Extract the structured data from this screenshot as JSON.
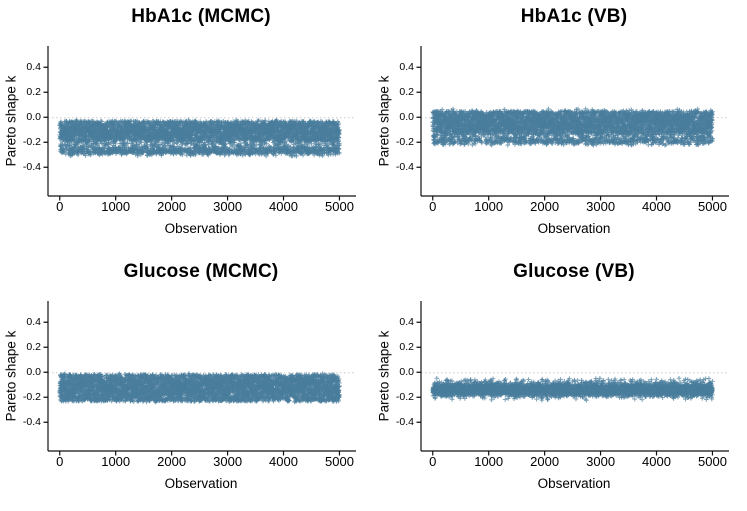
{
  "figure": {
    "background": "#ffffff",
    "point_color": "#4a7d9d",
    "point_alpha": 0.7,
    "axis_color": "#111111",
    "ref_line_color": "#cbcbcb",
    "text_color": "#000000"
  },
  "chart_data": [
    {
      "type": "scatter",
      "title": "HbA1c (MCMC)",
      "xlabel": "Observation",
      "ylabel": "Pareto shape k",
      "marker": "plus",
      "n_points": 5000,
      "x_min": 1,
      "x_max": 5000,
      "xlim": [
        -210,
        5260
      ],
      "ylim": [
        -0.63,
        0.57
      ],
      "xtick_values": [
        0,
        1000,
        2000,
        3000,
        4000,
        5000
      ],
      "xtick_labels": [
        "0",
        "1000",
        "2000",
        "3000",
        "4000",
        "5000"
      ],
      "ytick_values": [
        0.4,
        0.2,
        0.0,
        -0.2,
        -0.4
      ],
      "ytick_labels": [
        "0.4",
        "0.2",
        "0.0",
        "-0.2",
        "-0.4"
      ],
      "ref_line_y": 0,
      "grid": false,
      "k_min": -0.315,
      "k_max": -0.02,
      "k_mixture": [
        {
          "weight": 0.5,
          "dist": "uniform",
          "a": -0.185,
          "b": -0.03
        },
        {
          "weight": 0.2,
          "dist": "normal",
          "mean": -0.11,
          "sd": 0.045
        },
        {
          "weight": 0.1,
          "dist": "uniform",
          "a": -0.25,
          "b": -0.18
        },
        {
          "weight": 0.2,
          "dist": "normal",
          "mean": -0.272,
          "sd": 0.016
        }
      ],
      "seed": 101
    },
    {
      "type": "scatter",
      "title": "HbA1c (VB)",
      "xlabel": "Observation",
      "ylabel": "Pareto shape k",
      "marker": "plus",
      "n_points": 5000,
      "x_min": 1,
      "x_max": 5000,
      "xlim": [
        -210,
        5260
      ],
      "ylim": [
        -0.63,
        0.57
      ],
      "xtick_values": [
        0,
        1000,
        2000,
        3000,
        4000,
        5000
      ],
      "xtick_labels": [
        "0",
        "1000",
        "2000",
        "3000",
        "4000",
        "5000"
      ],
      "ytick_values": [
        0.4,
        0.2,
        0.0,
        -0.2,
        -0.4
      ],
      "ytick_labels": [
        "0.4",
        "0.2",
        "0.0",
        "-0.2",
        "-0.4"
      ],
      "ref_line_y": 0,
      "grid": false,
      "k_min": -0.225,
      "k_max": 0.07,
      "k_mixture": [
        {
          "weight": 0.62,
          "dist": "uniform",
          "a": -0.125,
          "b": 0.048
        },
        {
          "weight": 0.16,
          "dist": "normal",
          "mean": -0.04,
          "sd": 0.055
        },
        {
          "weight": 0.12,
          "dist": "uniform",
          "a": -0.19,
          "b": -0.12
        },
        {
          "weight": 0.1,
          "dist": "normal",
          "mean": -0.198,
          "sd": 0.013
        }
      ],
      "seed": 202
    },
    {
      "type": "scatter",
      "title": "Glucose (MCMC)",
      "xlabel": "Observation",
      "ylabel": "Pareto shape k",
      "marker": "plus",
      "n_points": 5000,
      "x_min": 1,
      "x_max": 5000,
      "xlim": [
        -210,
        5260
      ],
      "ylim": [
        -0.63,
        0.57
      ],
      "xtick_values": [
        0,
        1000,
        2000,
        3000,
        4000,
        5000
      ],
      "xtick_labels": [
        "0",
        "1000",
        "2000",
        "3000",
        "4000",
        "5000"
      ],
      "ytick_values": [
        0.4,
        0.2,
        0.0,
        -0.2,
        -0.4
      ],
      "ytick_labels": [
        "0.4",
        "0.2",
        "0.0",
        "-0.2",
        "-0.4"
      ],
      "ref_line_y": 0,
      "grid": false,
      "k_min": -0.245,
      "k_max": -0.008,
      "k_mixture": [
        {
          "weight": 0.8,
          "dist": "uniform",
          "a": -0.232,
          "b": -0.018
        },
        {
          "weight": 0.2,
          "dist": "normal",
          "mean": -0.125,
          "sd": 0.06
        }
      ],
      "seed": 303
    },
    {
      "type": "scatter",
      "title": "Glucose (VB)",
      "xlabel": "Observation",
      "ylabel": "Pareto shape k",
      "marker": "plus",
      "n_points": 5000,
      "x_min": 1,
      "x_max": 5000,
      "xlim": [
        -210,
        5260
      ],
      "ylim": [
        -0.63,
        0.57
      ],
      "xtick_values": [
        0,
        1000,
        2000,
        3000,
        4000,
        5000
      ],
      "xtick_labels": [
        "0",
        "1000",
        "2000",
        "3000",
        "4000",
        "5000"
      ],
      "ytick_values": [
        0.4,
        0.2,
        0.0,
        -0.2,
        -0.4
      ],
      "ytick_labels": [
        "0.4",
        "0.2",
        "0.0",
        "-0.2",
        "-0.4"
      ],
      "ref_line_y": 0,
      "grid": false,
      "k_min": -0.225,
      "k_max": -0.048,
      "k_mixture": [
        {
          "weight": 0.78,
          "dist": "normal",
          "mean": -0.142,
          "sd": 0.022
        },
        {
          "weight": 0.22,
          "dist": "normal",
          "mean": -0.128,
          "sd": 0.04
        }
      ],
      "seed": 404
    }
  ]
}
